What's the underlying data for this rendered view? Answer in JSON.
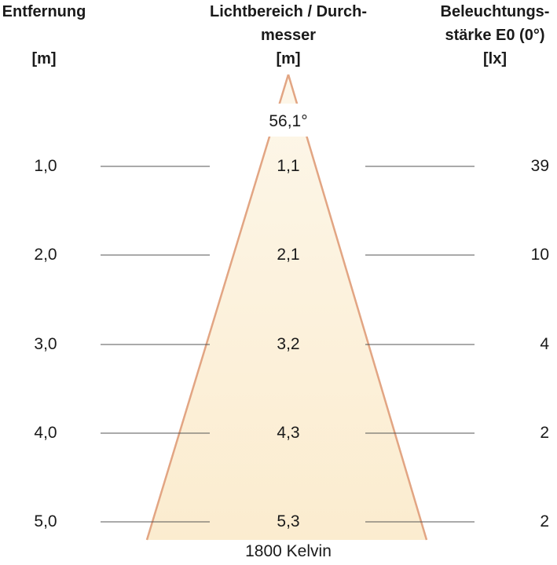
{
  "headers": {
    "distance": [
      "Entfernung",
      "[m]"
    ],
    "diameter": [
      "Lichtbereich / Durch-",
      "messer",
      "[m]"
    ],
    "illuminance": [
      "Beleuchtungs-",
      "stärke E0 (0°)",
      "[lx]"
    ]
  },
  "beam_angle": "56,1°",
  "color_temperature": "1800 Kelvin",
  "rows": [
    {
      "distance": "1,0",
      "diameter": "1,1",
      "illuminance": "39"
    },
    {
      "distance": "2,0",
      "diameter": "2,1",
      "illuminance": "10"
    },
    {
      "distance": "3,0",
      "diameter": "3,2",
      "illuminance": "4"
    },
    {
      "distance": "4,0",
      "diameter": "4,3",
      "illuminance": "2"
    },
    {
      "distance": "5,0",
      "diameter": "5,3",
      "illuminance": "2"
    }
  ],
  "colors": {
    "cone_fill_top": "#fdf7ea",
    "cone_fill_bottom": "#fbeccf",
    "cone_edge": "#e2a583",
    "line": "#555555"
  }
}
